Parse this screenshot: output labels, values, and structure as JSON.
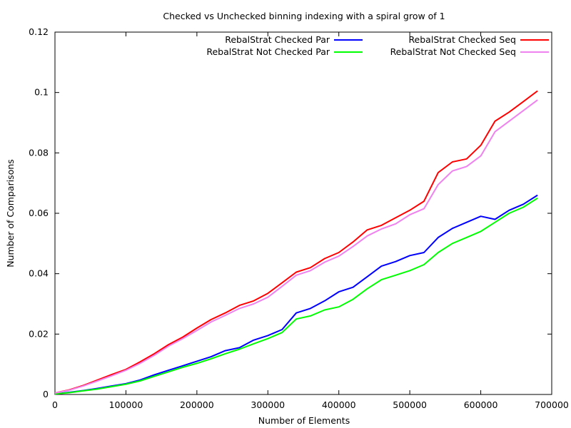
{
  "chart_data": {
    "type": "line",
    "title": "Checked vs Unchecked binning indexing with a spiral grow of 1",
    "xlabel": "Number of Elements",
    "ylabel": "Number of Comparisons",
    "xlim": [
      0,
      700000
    ],
    "ylim": [
      0,
      0.12
    ],
    "xticks": [
      0,
      100000,
      200000,
      300000,
      400000,
      500000,
      600000,
      700000
    ],
    "xtick_labels": [
      "0",
      "100000",
      "200000",
      "300000",
      "400000",
      "500000",
      "600000",
      "700000"
    ],
    "yticks": [
      0,
      0.02,
      0.04,
      0.06,
      0.08,
      0.1,
      0.12
    ],
    "ytick_labels": [
      "0",
      "0.02",
      "0.04",
      "0.06",
      "0.08",
      "0.1",
      "0.12"
    ],
    "grid": false,
    "legend_position": "top",
    "x": [
      0,
      20000,
      40000,
      60000,
      80000,
      100000,
      120000,
      140000,
      160000,
      180000,
      200000,
      220000,
      240000,
      260000,
      280000,
      300000,
      320000,
      340000,
      360000,
      380000,
      400000,
      420000,
      440000,
      460000,
      480000,
      500000,
      520000,
      540000,
      560000,
      580000,
      600000,
      620000,
      640000,
      660000,
      680000
    ],
    "series": [
      {
        "name": "RebalStrat Checked Par",
        "color": "#0000ff",
        "values": [
          0.0002,
          0.0007,
          0.0013,
          0.002,
          0.0028,
          0.0036,
          0.0048,
          0.0065,
          0.008,
          0.0095,
          0.011,
          0.0125,
          0.0145,
          0.0155,
          0.018,
          0.0195,
          0.0215,
          0.027,
          0.0285,
          0.031,
          0.034,
          0.0355,
          0.039,
          0.0425,
          0.044,
          0.046,
          0.047,
          0.052,
          0.055,
          0.057,
          0.059,
          0.058,
          0.061,
          0.063,
          0.066
        ]
      },
      {
        "name": "RebalStrat Not Checked Par",
        "color": "#00ff00",
        "values": [
          0.0002,
          0.0006,
          0.0012,
          0.0018,
          0.0026,
          0.0034,
          0.0045,
          0.006,
          0.0075,
          0.009,
          0.0103,
          0.0118,
          0.0135,
          0.015,
          0.0168,
          0.0185,
          0.0205,
          0.025,
          0.026,
          0.028,
          0.029,
          0.0315,
          0.035,
          0.038,
          0.0395,
          0.041,
          0.043,
          0.047,
          0.05,
          0.052,
          0.054,
          0.057,
          0.06,
          0.062,
          0.065
        ]
      },
      {
        "name": "RebalStrat Checked Seq",
        "color": "#ff0000",
        "values": [
          0.0005,
          0.0015,
          0.003,
          0.0048,
          0.0066,
          0.0083,
          0.0108,
          0.0135,
          0.0165,
          0.019,
          0.022,
          0.0248,
          0.027,
          0.0295,
          0.031,
          0.0335,
          0.037,
          0.0405,
          0.042,
          0.045,
          0.047,
          0.0505,
          0.0545,
          0.056,
          0.0585,
          0.061,
          0.064,
          0.0735,
          0.077,
          0.078,
          0.0825,
          0.0905,
          0.0935,
          0.097,
          0.1005
        ]
      },
      {
        "name": "RebalStrat Not Checked Seq",
        "color": "#ee82ee",
        "values": [
          0.0005,
          0.0014,
          0.0028,
          0.0045,
          0.0062,
          0.008,
          0.0103,
          0.013,
          0.016,
          0.0185,
          0.0212,
          0.024,
          0.0262,
          0.0285,
          0.03,
          0.0322,
          0.0358,
          0.0395,
          0.041,
          0.0438,
          0.0458,
          0.049,
          0.0525,
          0.0548,
          0.0565,
          0.0595,
          0.0615,
          0.0695,
          0.074,
          0.0755,
          0.079,
          0.087,
          0.0905,
          0.094,
          0.0975
        ]
      }
    ]
  }
}
